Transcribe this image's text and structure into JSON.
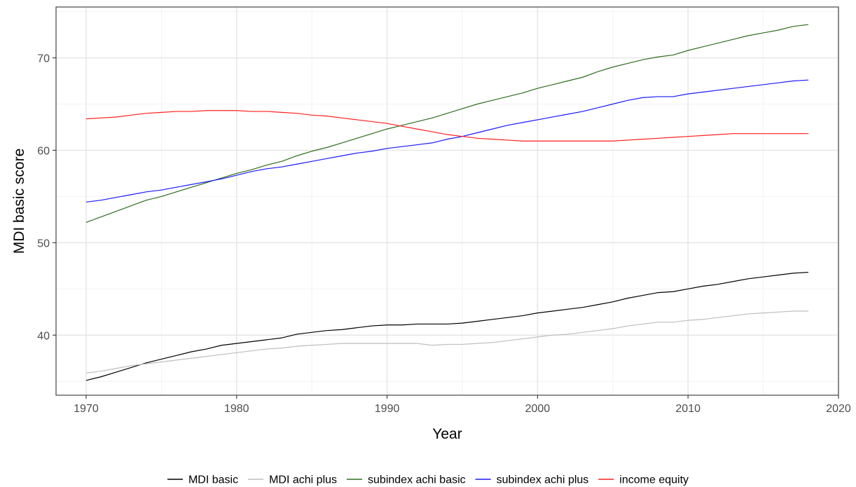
{
  "chart_data": {
    "type": "line",
    "title": "",
    "xlabel": "Year",
    "ylabel": "MDI basic score",
    "xlim": [
      1968,
      2020
    ],
    "ylim": [
      33.5,
      75.5
    ],
    "x_ticks": [
      1970,
      1980,
      1990,
      2000,
      2010,
      2020
    ],
    "y_ticks": [
      40,
      50,
      60,
      70
    ],
    "x_tick_labels": [
      "1970",
      "1980",
      "1990",
      "2000",
      "2010",
      "2020"
    ],
    "y_tick_labels": [
      "40",
      "50",
      "60",
      "70"
    ],
    "grid": true,
    "legend_position": "bottom",
    "x": [
      1970,
      1971,
      1972,
      1973,
      1974,
      1975,
      1976,
      1977,
      1978,
      1979,
      1980,
      1981,
      1982,
      1983,
      1984,
      1985,
      1986,
      1987,
      1988,
      1989,
      1990,
      1991,
      1992,
      1993,
      1994,
      1995,
      1996,
      1997,
      1998,
      1999,
      2000,
      2001,
      2002,
      2003,
      2004,
      2005,
      2006,
      2007,
      2008,
      2009,
      2010,
      2011,
      2012,
      2013,
      2014,
      2015,
      2016,
      2017,
      2018
    ],
    "series": [
      {
        "name": "MDI basic",
        "color": "#000000",
        "values": [
          35.1,
          35.5,
          36.0,
          36.5,
          37.0,
          37.4,
          37.8,
          38.2,
          38.5,
          38.9,
          39.1,
          39.3,
          39.5,
          39.7,
          40.1,
          40.3,
          40.5,
          40.6,
          40.8,
          41.0,
          41.1,
          41.1,
          41.2,
          41.2,
          41.2,
          41.3,
          41.5,
          41.7,
          41.9,
          42.1,
          42.4,
          42.6,
          42.8,
          43.0,
          43.3,
          43.6,
          44.0,
          44.3,
          44.6,
          44.7,
          45.0,
          45.3,
          45.5,
          45.8,
          46.1,
          46.3,
          46.5,
          46.7,
          46.8
        ]
      },
      {
        "name": "MDI achi plus",
        "color": "#bebebe",
        "values": [
          35.9,
          36.1,
          36.4,
          36.7,
          36.9,
          37.1,
          37.3,
          37.5,
          37.7,
          37.9,
          38.1,
          38.3,
          38.5,
          38.6,
          38.8,
          38.9,
          39.0,
          39.1,
          39.1,
          39.1,
          39.1,
          39.1,
          39.1,
          38.9,
          39.0,
          39.0,
          39.1,
          39.2,
          39.4,
          39.6,
          39.8,
          40.0,
          40.1,
          40.3,
          40.5,
          40.7,
          41.0,
          41.2,
          41.4,
          41.4,
          41.6,
          41.7,
          41.9,
          42.1,
          42.3,
          42.4,
          42.5,
          42.6,
          42.6
        ]
      },
      {
        "name": "subindex achi basic",
        "color": "#2d6e1e",
        "values": [
          52.2,
          52.8,
          53.4,
          54.0,
          54.6,
          55.0,
          55.5,
          56.0,
          56.5,
          57.0,
          57.5,
          57.9,
          58.4,
          58.8,
          59.4,
          59.9,
          60.3,
          60.8,
          61.3,
          61.8,
          62.3,
          62.7,
          63.1,
          63.5,
          64.0,
          64.5,
          65.0,
          65.4,
          65.8,
          66.2,
          66.7,
          67.1,
          67.5,
          67.9,
          68.5,
          69.0,
          69.4,
          69.8,
          70.1,
          70.3,
          70.8,
          71.2,
          71.6,
          72.0,
          72.4,
          72.7,
          73.0,
          73.4,
          73.6
        ]
      },
      {
        "name": "subindex achi plus",
        "color": "#1a1aff",
        "values": [
          54.4,
          54.6,
          54.9,
          55.2,
          55.5,
          55.7,
          56.0,
          56.3,
          56.6,
          56.9,
          57.3,
          57.7,
          58.0,
          58.2,
          58.5,
          58.8,
          59.1,
          59.4,
          59.7,
          59.9,
          60.2,
          60.4,
          60.6,
          60.8,
          61.2,
          61.5,
          61.9,
          62.3,
          62.7,
          63.0,
          63.3,
          63.6,
          63.9,
          64.2,
          64.6,
          65.0,
          65.4,
          65.7,
          65.8,
          65.8,
          66.1,
          66.3,
          66.5,
          66.7,
          66.9,
          67.1,
          67.3,
          67.5,
          67.6
        ]
      },
      {
        "name": "income equity",
        "color": "#ff1f1f",
        "values": [
          63.4,
          63.5,
          63.6,
          63.8,
          64.0,
          64.1,
          64.2,
          64.2,
          64.3,
          64.3,
          64.3,
          64.2,
          64.2,
          64.1,
          64.0,
          63.8,
          63.7,
          63.5,
          63.3,
          63.1,
          62.9,
          62.6,
          62.3,
          62.0,
          61.7,
          61.5,
          61.3,
          61.2,
          61.1,
          61.0,
          61.0,
          61.0,
          61.0,
          61.0,
          61.0,
          61.0,
          61.1,
          61.2,
          61.3,
          61.4,
          61.5,
          61.6,
          61.7,
          61.8,
          61.8,
          61.8,
          61.8,
          61.8,
          61.8
        ]
      }
    ]
  }
}
